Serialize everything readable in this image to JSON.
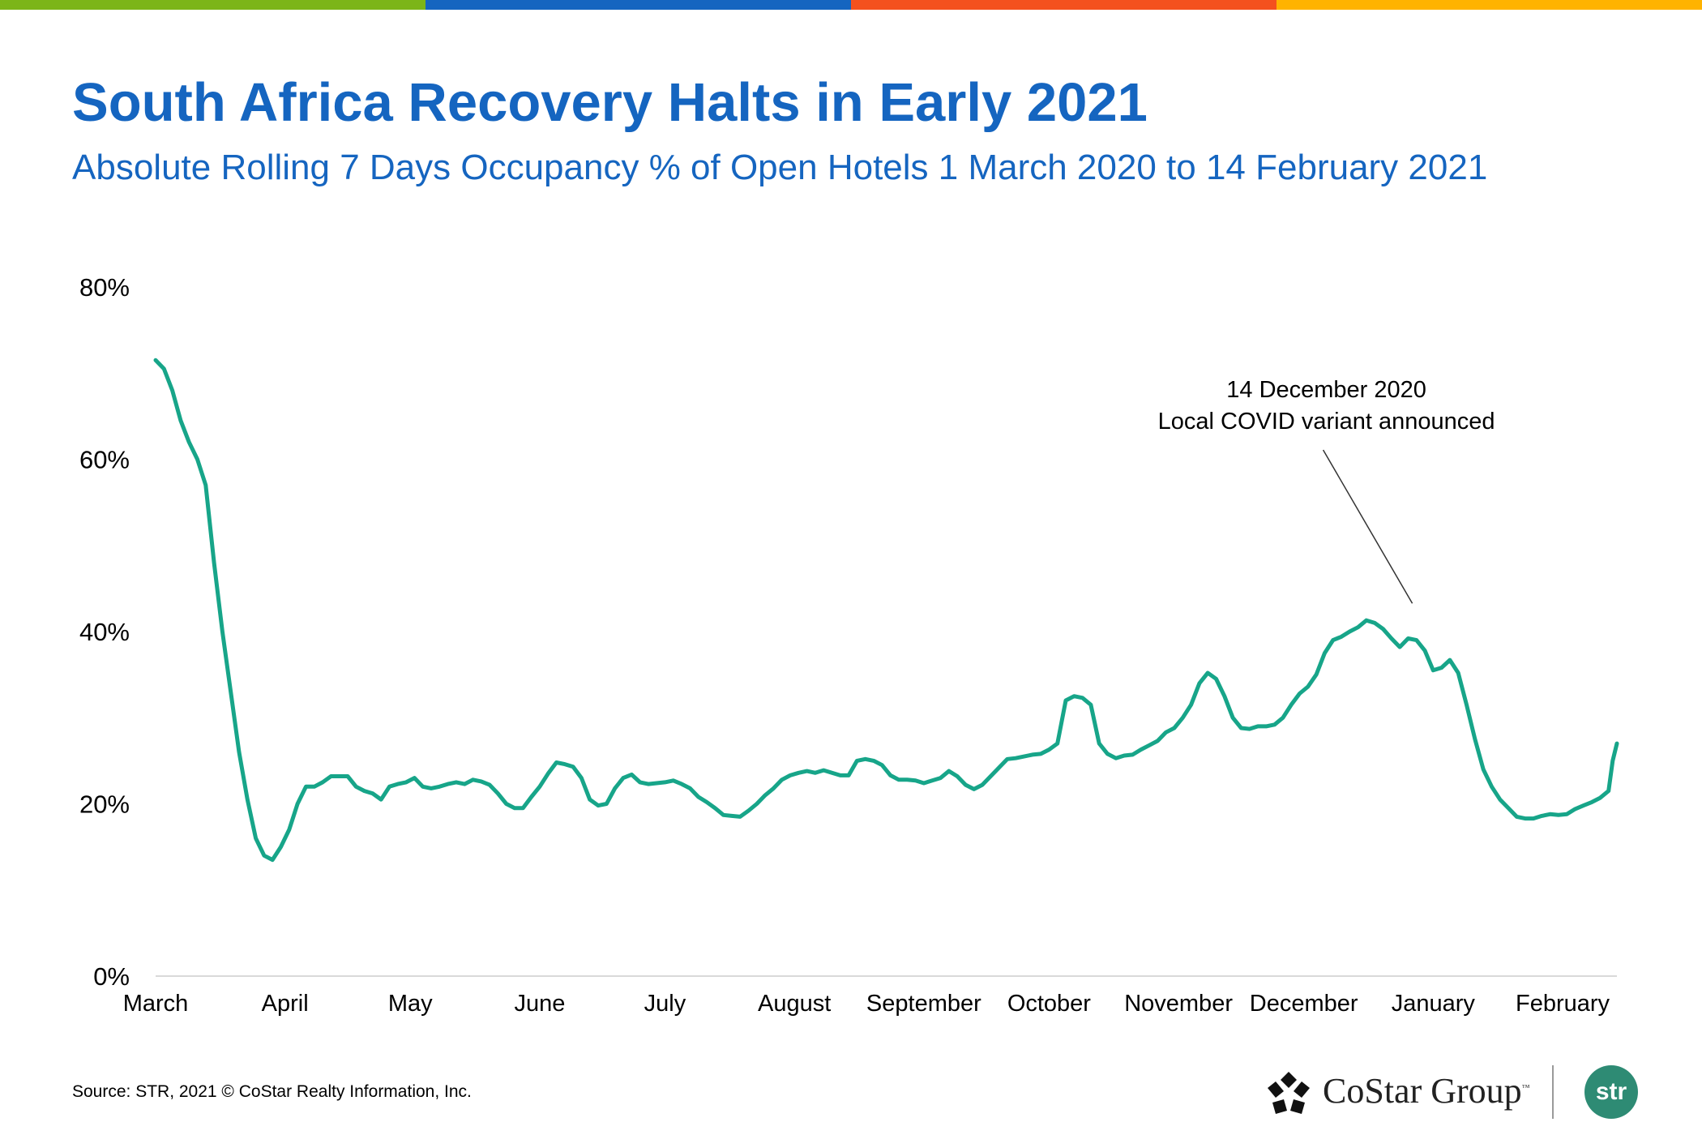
{
  "header": {
    "title": "South Africa Recovery Halts in Early 2021",
    "subtitle": "Absolute Rolling 7 Days Occupancy % of Open Hotels 1 March 2020 to 14 February 2021",
    "stripe_colors": [
      "#7cb518",
      "#1565c0",
      "#f4511e",
      "#ffb300"
    ]
  },
  "chart_data": {
    "type": "line",
    "x_start": "2020-03-01",
    "x_end": "2021-02-14",
    "ylim": [
      0,
      80
    ],
    "yticks": [
      "0%",
      "20%",
      "40%",
      "60%",
      "80%"
    ],
    "xticks": [
      {
        "label": "March",
        "date": "2020-03-01"
      },
      {
        "label": "April",
        "date": "2020-04-01"
      },
      {
        "label": "May",
        "date": "2020-05-01"
      },
      {
        "label": "June",
        "date": "2020-06-01"
      },
      {
        "label": "July",
        "date": "2020-07-01"
      },
      {
        "label": "August",
        "date": "2020-08-01"
      },
      {
        "label": "September",
        "date": "2020-09-01"
      },
      {
        "label": "October",
        "date": "2020-10-01"
      },
      {
        "label": "November",
        "date": "2020-11-01"
      },
      {
        "label": "December",
        "date": "2020-12-01"
      },
      {
        "label": "January",
        "date": "2021-01-01"
      },
      {
        "label": "February",
        "date": "2021-02-01"
      }
    ],
    "grid": false,
    "series": [
      {
        "color": "#17a589",
        "points": [
          [
            "2020-03-01",
            71.5
          ],
          [
            "2020-03-03",
            70.5
          ],
          [
            "2020-03-05",
            68
          ],
          [
            "2020-03-07",
            64.5
          ],
          [
            "2020-03-09",
            62
          ],
          [
            "2020-03-11",
            60
          ],
          [
            "2020-03-13",
            57
          ],
          [
            "2020-03-15",
            48
          ],
          [
            "2020-03-17",
            40
          ],
          [
            "2020-03-19",
            33
          ],
          [
            "2020-03-21",
            26
          ],
          [
            "2020-03-23",
            20.5
          ],
          [
            "2020-03-25",
            16
          ],
          [
            "2020-03-27",
            14
          ],
          [
            "2020-03-29",
            13.5
          ],
          [
            "2020-03-31",
            15
          ],
          [
            "2020-04-02",
            17
          ],
          [
            "2020-04-04",
            20
          ],
          [
            "2020-04-06",
            22
          ],
          [
            "2020-04-08",
            22
          ],
          [
            "2020-04-10",
            22.5
          ],
          [
            "2020-04-12",
            23.2
          ],
          [
            "2020-04-14",
            23.2
          ],
          [
            "2020-04-16",
            23.2
          ],
          [
            "2020-04-18",
            22
          ],
          [
            "2020-04-20",
            21.5
          ],
          [
            "2020-04-22",
            21.2
          ],
          [
            "2020-04-24",
            20.5
          ],
          [
            "2020-04-26",
            22
          ],
          [
            "2020-04-28",
            22.3
          ],
          [
            "2020-04-30",
            22.5
          ],
          [
            "2020-05-02",
            23
          ],
          [
            "2020-05-04",
            22
          ],
          [
            "2020-05-06",
            21.8
          ],
          [
            "2020-05-08",
            22
          ],
          [
            "2020-05-10",
            22.3
          ],
          [
            "2020-05-12",
            22.5
          ],
          [
            "2020-05-14",
            22.3
          ],
          [
            "2020-05-16",
            22.8
          ],
          [
            "2020-05-18",
            22.6
          ],
          [
            "2020-05-20",
            22.2
          ],
          [
            "2020-05-22",
            21.2
          ],
          [
            "2020-05-24",
            20
          ],
          [
            "2020-05-26",
            19.5
          ],
          [
            "2020-05-28",
            19.5
          ],
          [
            "2020-05-30",
            20.8
          ],
          [
            "2020-06-01",
            22
          ],
          [
            "2020-06-03",
            23.5
          ],
          [
            "2020-06-05",
            24.8
          ],
          [
            "2020-06-07",
            24.6
          ],
          [
            "2020-06-09",
            24.3
          ],
          [
            "2020-06-11",
            23
          ],
          [
            "2020-06-13",
            20.5
          ],
          [
            "2020-06-15",
            19.8
          ],
          [
            "2020-06-17",
            20
          ],
          [
            "2020-06-19",
            21.8
          ],
          [
            "2020-06-21",
            23
          ],
          [
            "2020-06-23",
            23.4
          ],
          [
            "2020-06-25",
            22.5
          ],
          [
            "2020-06-27",
            22.3
          ],
          [
            "2020-06-29",
            22.4
          ],
          [
            "2020-07-01",
            22.5
          ],
          [
            "2020-07-03",
            22.7
          ],
          [
            "2020-07-05",
            22.3
          ],
          [
            "2020-07-07",
            21.8
          ],
          [
            "2020-07-09",
            20.8
          ],
          [
            "2020-07-11",
            20.2
          ],
          [
            "2020-07-13",
            19.5
          ],
          [
            "2020-07-15",
            18.7
          ],
          [
            "2020-07-17",
            18.6
          ],
          [
            "2020-07-19",
            18.5
          ],
          [
            "2020-07-21",
            19.2
          ],
          [
            "2020-07-23",
            20
          ],
          [
            "2020-07-25",
            21
          ],
          [
            "2020-07-27",
            21.8
          ],
          [
            "2020-07-29",
            22.8
          ],
          [
            "2020-07-31",
            23.3
          ],
          [
            "2020-08-02",
            23.6
          ],
          [
            "2020-08-04",
            23.8
          ],
          [
            "2020-08-06",
            23.6
          ],
          [
            "2020-08-08",
            23.9
          ],
          [
            "2020-08-10",
            23.6
          ],
          [
            "2020-08-12",
            23.3
          ],
          [
            "2020-08-14",
            23.3
          ],
          [
            "2020-08-16",
            25
          ],
          [
            "2020-08-18",
            25.2
          ],
          [
            "2020-08-20",
            25
          ],
          [
            "2020-08-22",
            24.5
          ],
          [
            "2020-08-24",
            23.3
          ],
          [
            "2020-08-26",
            22.8
          ],
          [
            "2020-08-28",
            22.8
          ],
          [
            "2020-08-30",
            22.7
          ],
          [
            "2020-09-01",
            22.4
          ],
          [
            "2020-09-03",
            22.7
          ],
          [
            "2020-09-05",
            23
          ],
          [
            "2020-09-07",
            23.8
          ],
          [
            "2020-09-09",
            23.2
          ],
          [
            "2020-09-11",
            22.2
          ],
          [
            "2020-09-13",
            21.7
          ],
          [
            "2020-09-15",
            22.2
          ],
          [
            "2020-09-17",
            23.2
          ],
          [
            "2020-09-19",
            24.2
          ],
          [
            "2020-09-21",
            25.2
          ],
          [
            "2020-09-23",
            25.3
          ],
          [
            "2020-09-25",
            25.5
          ],
          [
            "2020-09-27",
            25.7
          ],
          [
            "2020-09-29",
            25.8
          ],
          [
            "2020-10-01",
            26.3
          ],
          [
            "2020-10-03",
            27
          ],
          [
            "2020-10-05",
            32
          ],
          [
            "2020-10-07",
            32.5
          ],
          [
            "2020-10-09",
            32.3
          ],
          [
            "2020-10-11",
            31.5
          ],
          [
            "2020-10-13",
            27
          ],
          [
            "2020-10-15",
            25.8
          ],
          [
            "2020-10-17",
            25.3
          ],
          [
            "2020-10-19",
            25.6
          ],
          [
            "2020-10-21",
            25.7
          ],
          [
            "2020-10-23",
            26.3
          ],
          [
            "2020-10-25",
            26.8
          ],
          [
            "2020-10-27",
            27.3
          ],
          [
            "2020-10-29",
            28.3
          ],
          [
            "2020-10-31",
            28.8
          ],
          [
            "2020-11-02",
            30
          ],
          [
            "2020-11-04",
            31.5
          ],
          [
            "2020-11-06",
            34
          ],
          [
            "2020-11-08",
            35.2
          ],
          [
            "2020-11-10",
            34.5
          ],
          [
            "2020-11-12",
            32.5
          ],
          [
            "2020-11-14",
            30
          ],
          [
            "2020-11-16",
            28.8
          ],
          [
            "2020-11-18",
            28.7
          ],
          [
            "2020-11-20",
            29
          ],
          [
            "2020-11-22",
            29
          ],
          [
            "2020-11-24",
            29.2
          ],
          [
            "2020-11-26",
            30
          ],
          [
            "2020-11-28",
            31.5
          ],
          [
            "2020-11-30",
            32.8
          ],
          [
            "2020-12-02",
            33.6
          ],
          [
            "2020-12-04",
            35
          ],
          [
            "2020-12-06",
            37.5
          ],
          [
            "2020-12-08",
            39
          ],
          [
            "2020-12-10",
            39.4
          ],
          [
            "2020-12-12",
            40
          ],
          [
            "2020-12-14",
            40.5
          ],
          [
            "2020-12-16",
            41.3
          ],
          [
            "2020-12-18",
            41
          ],
          [
            "2020-12-20",
            40.3
          ],
          [
            "2020-12-22",
            39.2
          ],
          [
            "2020-12-24",
            38.2
          ],
          [
            "2020-12-26",
            39.2
          ],
          [
            "2020-12-28",
            39
          ],
          [
            "2020-12-30",
            37.8
          ],
          [
            "2021-01-01",
            35.5
          ],
          [
            "2021-01-03",
            35.8
          ],
          [
            "2021-01-05",
            36.7
          ],
          [
            "2021-01-07",
            35.2
          ],
          [
            "2021-01-09",
            31.5
          ],
          [
            "2021-01-11",
            27.5
          ],
          [
            "2021-01-13",
            24
          ],
          [
            "2021-01-15",
            22
          ],
          [
            "2021-01-17",
            20.5
          ],
          [
            "2021-01-19",
            19.5
          ],
          [
            "2021-01-21",
            18.5
          ],
          [
            "2021-01-23",
            18.3
          ],
          [
            "2021-01-25",
            18.3
          ],
          [
            "2021-01-27",
            18.6
          ],
          [
            "2021-01-29",
            18.8
          ],
          [
            "2021-01-31",
            18.7
          ],
          [
            "2021-02-02",
            18.8
          ],
          [
            "2021-02-04",
            19.4
          ],
          [
            "2021-02-06",
            19.8
          ],
          [
            "2021-02-08",
            20.2
          ],
          [
            "2021-02-10",
            20.7
          ],
          [
            "2021-02-12",
            21.5
          ],
          [
            "2021-02-13",
            25
          ],
          [
            "2021-02-14",
            27
          ]
        ]
      }
    ],
    "annotation": {
      "line1": "14 December 2020",
      "line2": "Local COVID variant announced",
      "date": "2020-12-27",
      "value": 41.2
    }
  },
  "footer": {
    "source": "Source: STR, 2021 © CoStar Realty Information, Inc.",
    "costar_name": "CoStar Group",
    "costar_tm": "™",
    "str_name": "str"
  }
}
